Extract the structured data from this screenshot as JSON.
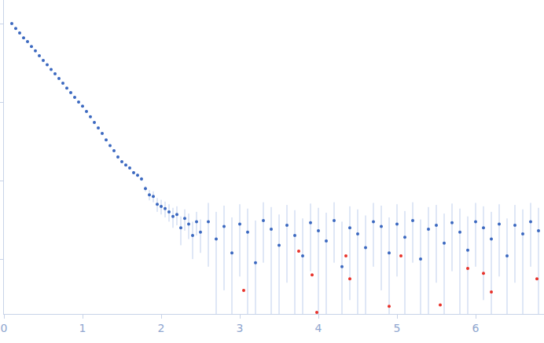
{
  "chart_data": {
    "type": "scatter",
    "log": "y",
    "grid": false,
    "tick_labels": "x",
    "marker": "circle",
    "xlim": [
      0,
      6.87
    ],
    "xticks": [
      0,
      1,
      2,
      3,
      4,
      5,
      6
    ],
    "ylim": [
      0.0002,
      2
    ],
    "yticks": [
      0.001,
      0.01,
      0.1,
      1
    ],
    "series": [
      {
        "color": "#3b68c0",
        "x": [
          0.1,
          0.15,
          0.2,
          0.25,
          0.3,
          0.35,
          0.4,
          0.45,
          0.5,
          0.55,
          0.6,
          0.65,
          0.7,
          0.75,
          0.8,
          0.85,
          0.9,
          0.95,
          1.0,
          1.05,
          1.1,
          1.15,
          1.2,
          1.25,
          1.3,
          1.35,
          1.4,
          1.45,
          1.5,
          1.55,
          1.6,
          1.65,
          1.7,
          1.75,
          1.8,
          1.85,
          1.9,
          1.95,
          2.0,
          2.05,
          2.1,
          2.15,
          2.2,
          2.25,
          2.3,
          2.35,
          2.4,
          2.45,
          2.5,
          2.6,
          2.7,
          2.8,
          2.9,
          3.0,
          3.1,
          3.2,
          3.3,
          3.4,
          3.5,
          3.6,
          3.7,
          3.8,
          3.9,
          4.0,
          4.1,
          4.2,
          4.3,
          4.4,
          4.5,
          4.6,
          4.7,
          4.8,
          4.9,
          5.0,
          5.1,
          5.2,
          5.3,
          5.4,
          5.5,
          5.6,
          5.7,
          5.8,
          5.9,
          6.0,
          6.1,
          6.2,
          6.3,
          6.4,
          6.5,
          6.6,
          6.7,
          6.8
        ],
        "values": [
          1.0,
          0.87,
          0.76,
          0.66,
          0.59,
          0.51,
          0.45,
          0.39,
          0.34,
          0.3,
          0.26,
          0.23,
          0.2,
          0.174,
          0.151,
          0.132,
          0.115,
          0.1,
          0.089,
          0.076,
          0.065,
          0.055,
          0.047,
          0.04,
          0.033,
          0.028,
          0.024,
          0.02,
          0.0174,
          0.0158,
          0.0145,
          0.0126,
          0.0117,
          0.0105,
          0.0079,
          0.0066,
          0.0063,
          0.005,
          0.0047,
          0.0044,
          0.004,
          0.0035,
          0.0037,
          0.0025,
          0.0033,
          0.0028,
          0.002,
          0.003,
          0.0022,
          0.003,
          0.0018,
          0.0026,
          0.0012,
          0.0028,
          0.0022,
          0.0009,
          0.0031,
          0.0024,
          0.0015,
          0.0027,
          0.002,
          0.0011,
          0.0029,
          0.0023,
          0.0017,
          0.0031,
          0.0008,
          0.0025,
          0.0021,
          0.0014,
          0.003,
          0.0026,
          0.0012,
          0.0028,
          0.0019,
          0.0031,
          0.001,
          0.0024,
          0.0027,
          0.0016,
          0.0029,
          0.0022,
          0.0013,
          0.003,
          0.0025,
          0.0018,
          0.0028,
          0.0011,
          0.0027,
          0.0021,
          0.003,
          0.0023
        ],
        "errors": [
          0.002,
          0.002,
          0.002,
          0.002,
          0.002,
          0.002,
          0.002,
          0.002,
          0.002,
          0.002,
          0.002,
          0.002,
          0.002,
          0.002,
          0.002,
          0.002,
          0.002,
          0.002,
          0.002,
          0.002,
          0.001,
          0.001,
          0.001,
          0.001,
          0.001,
          0.001,
          0.001,
          0.001,
          0.0006,
          0.0006,
          0.0006,
          0.0006,
          0.0006,
          0.0006,
          0.0006,
          0.001,
          0.001,
          0.001,
          0.001,
          0.001,
          0.001,
          0.001,
          0.001,
          0.001,
          0.001,
          0.001,
          0.001,
          0.001,
          0.001,
          0.0022,
          0.0022,
          0.0022,
          0.0022,
          0.0022,
          0.0022,
          0.0022,
          0.0022,
          0.0022,
          0.0022,
          0.0022,
          0.0022,
          0.0022,
          0.0022,
          0.0022,
          0.0022,
          0.0022,
          0.0022,
          0.0022,
          0.0022,
          0.0022,
          0.0022,
          0.0022,
          0.0022,
          0.0022,
          0.0022,
          0.0022,
          0.0022,
          0.0022,
          0.0022,
          0.0022,
          0.0022,
          0.0022,
          0.0022,
          0.0022,
          0.0022,
          0.0022,
          0.0022,
          0.0022,
          0.0022,
          0.0022,
          0.0022,
          0.0022
        ]
      },
      {
        "color": "#e8322a",
        "x": [
          3.05,
          3.75,
          3.92,
          3.98,
          4.35,
          4.4,
          4.9,
          5.05,
          5.55,
          5.9,
          6.1,
          6.2,
          6.78
        ],
        "values": [
          0.0004,
          0.00126,
          0.00063,
          0.00021,
          0.0011,
          0.00056,
          0.00025,
          0.0011,
          0.00026,
          0.00076,
          0.00066,
          0.00038,
          0.00056
        ]
      }
    ]
  }
}
